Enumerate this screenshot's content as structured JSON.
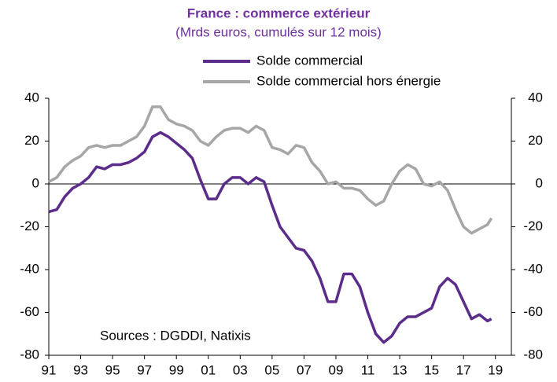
{
  "chart_data": {
    "type": "line",
    "title": "France : commerce extérieur",
    "subtitle": "(Mrds euros, cumulés sur 12 mois)",
    "annotation": "Sources :  DGDDI, Natixis",
    "x": [
      1991,
      1991.5,
      1992,
      1992.5,
      1993,
      1993.5,
      1994,
      1994.5,
      1995,
      1995.5,
      1996,
      1996.5,
      1997,
      1997.5,
      1998,
      1998.5,
      1999,
      1999.5,
      2000,
      2000.5,
      2001,
      2001.5,
      2002,
      2002.5,
      2003,
      2003.5,
      2004,
      2004.5,
      2005,
      2005.5,
      2006,
      2006.5,
      2007,
      2007.5,
      2008,
      2008.5,
      2009,
      2009.5,
      2010,
      2010.5,
      2011,
      2011.5,
      2012,
      2012.5,
      2013,
      2013.5,
      2014,
      2014.5,
      2015,
      2015.5,
      2016,
      2016.5,
      2017,
      2017.5,
      2018,
      2018.5,
      2018.75
    ],
    "series": [
      {
        "name": "Solde commercial",
        "color": "#5b2c8a",
        "values": [
          -13,
          -12,
          -6,
          -2,
          0,
          3,
          8,
          7,
          9,
          9,
          10,
          12,
          15,
          22,
          24,
          22,
          19,
          16,
          12,
          2,
          -7,
          -7,
          0,
          3,
          3,
          0,
          3,
          1,
          -10,
          -20,
          -25,
          -30,
          -31,
          -36,
          -44,
          -55,
          -55,
          -42,
          -42,
          -48,
          -60,
          -70,
          -74,
          -71,
          -65,
          -62,
          -62,
          -60,
          -58,
          -48,
          -44,
          -47,
          -55,
          -63,
          -61,
          -64,
          -63
        ]
      },
      {
        "name": "Solde commercial hors énergie",
        "color": "#a6a6a6",
        "values": [
          1,
          3,
          8,
          11,
          13,
          17,
          18,
          17,
          18,
          18,
          20,
          22,
          27,
          36,
          36,
          30,
          28,
          27,
          25,
          20,
          18,
          22,
          25,
          26,
          26,
          24,
          27,
          25,
          17,
          16,
          14,
          18,
          17,
          10,
          6,
          0,
          1,
          -2,
          -2,
          -3,
          -7,
          -10,
          -8,
          0,
          6,
          9,
          7,
          0,
          -1,
          1,
          -3,
          -12,
          -20,
          -23,
          -21,
          -19,
          -16
        ]
      }
    ],
    "xlim": [
      1991,
      2020
    ],
    "xticks": [
      {
        "value": 1991,
        "label": "91"
      },
      {
        "value": 1993,
        "label": "93"
      },
      {
        "value": 1995,
        "label": "95"
      },
      {
        "value": 1997,
        "label": "97"
      },
      {
        "value": 1999,
        "label": "99"
      },
      {
        "value": 2001,
        "label": "01"
      },
      {
        "value": 2003,
        "label": "03"
      },
      {
        "value": 2005,
        "label": "05"
      },
      {
        "value": 2007,
        "label": "07"
      },
      {
        "value": 2009,
        "label": "09"
      },
      {
        "value": 2011,
        "label": "11"
      },
      {
        "value": 2013,
        "label": "13"
      },
      {
        "value": 2015,
        "label": "15"
      },
      {
        "value": 2017,
        "label": "17"
      },
      {
        "value": 2019,
        "label": "19"
      }
    ],
    "ylim": [
      -80,
      40
    ],
    "yticks": [
      -80,
      -60,
      -40,
      -20,
      0,
      20,
      40
    ],
    "y2lim": [
      -80,
      40
    ],
    "y2ticks": [
      -80,
      -60,
      -40,
      -20,
      0,
      20,
      40
    ],
    "legend": "top"
  }
}
